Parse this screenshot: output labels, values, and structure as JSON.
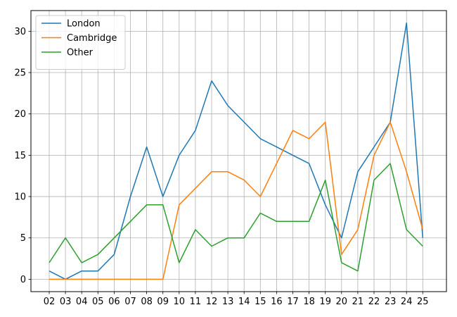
{
  "chart_data": {
    "type": "line",
    "title": "",
    "xlabel": "",
    "ylabel": "",
    "categories": [
      "02",
      "03",
      "04",
      "05",
      "06",
      "07",
      "08",
      "09",
      "10",
      "11",
      "12",
      "13",
      "14",
      "15",
      "16",
      "17",
      "18",
      "19",
      "20",
      "21",
      "22",
      "23",
      "24",
      "25"
    ],
    "series": [
      {
        "name": "London",
        "color": "#1f77b4",
        "values": [
          1,
          0,
          1,
          1,
          3,
          10,
          16,
          10,
          15,
          18,
          24,
          21,
          19,
          17,
          16,
          15,
          14,
          9,
          5,
          13,
          16,
          19,
          31,
          5
        ]
      },
      {
        "name": "Cambridge",
        "color": "#ff7f0e",
        "values": [
          0,
          0,
          0,
          0,
          0,
          0,
          0,
          0,
          9,
          11,
          13,
          13,
          12,
          10,
          14,
          18,
          17,
          19,
          3,
          6,
          15,
          19,
          13,
          6
        ]
      },
      {
        "name": "Other",
        "color": "#2ca02c",
        "values": [
          2,
          5,
          2,
          3,
          5,
          7,
          9,
          9,
          2,
          6,
          4,
          5,
          5,
          8,
          7,
          7,
          7,
          12,
          2,
          1,
          12,
          14,
          6,
          4
        ]
      }
    ],
    "ylim": [
      -1.5,
      32.5
    ],
    "yticks": [
      0,
      5,
      10,
      15,
      20,
      25,
      30
    ],
    "grid": true,
    "legend_position": "top-left"
  }
}
